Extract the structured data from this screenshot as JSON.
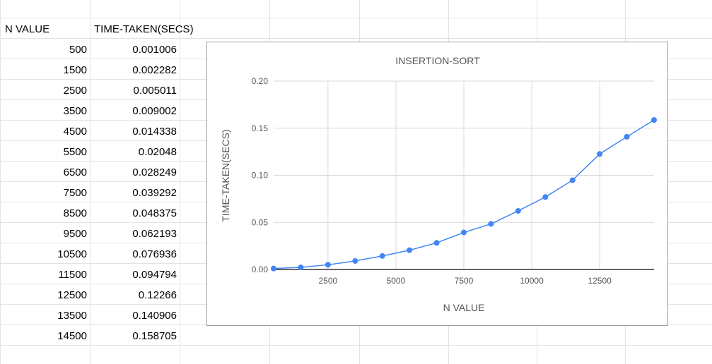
{
  "sheet": {
    "headers": {
      "col_a": "N VALUE",
      "col_b": "TIME-TAKEN(SECS)"
    },
    "rows": [
      {
        "n": "500",
        "time": "0.001006"
      },
      {
        "n": "1500",
        "time": "0.002282"
      },
      {
        "n": "2500",
        "time": "0.005011"
      },
      {
        "n": "3500",
        "time": "0.009002"
      },
      {
        "n": "4500",
        "time": "0.014338"
      },
      {
        "n": "5500",
        "time": "0.02048"
      },
      {
        "n": "6500",
        "time": "0.028249"
      },
      {
        "n": "7500",
        "time": "0.039292"
      },
      {
        "n": "8500",
        "time": "0.048375"
      },
      {
        "n": "9500",
        "time": "0.062193"
      },
      {
        "n": "10500",
        "time": "0.076936"
      },
      {
        "n": "11500",
        "time": "0.094794"
      },
      {
        "n": "12500",
        "time": "0.12266"
      },
      {
        "n": "13500",
        "time": "0.140906"
      },
      {
        "n": "14500",
        "time": "0.158705"
      }
    ]
  },
  "chart_data": {
    "type": "line",
    "title": "INSERTION-SORT",
    "xlabel": "N VALUE",
    "ylabel": "TIME-TAKEN(SECS)",
    "x": [
      500,
      1500,
      2500,
      3500,
      4500,
      5500,
      6500,
      7500,
      8500,
      9500,
      10500,
      11500,
      12500,
      13500,
      14500
    ],
    "series": [
      {
        "values": [
          0.001006,
          0.002282,
          0.005011,
          0.009002,
          0.014338,
          0.02048,
          0.028249,
          0.039292,
          0.048375,
          0.062193,
          0.076936,
          0.094794,
          0.12266,
          0.140906,
          0.158705
        ],
        "color": "#4285f4"
      }
    ],
    "xlim": [
      500,
      14500
    ],
    "ylim": [
      0,
      0.2
    ],
    "xticks": [
      2500,
      5000,
      7500,
      10000,
      12500
    ],
    "xtick_labels": [
      "2500",
      "5000",
      "7500",
      "10000",
      "12500"
    ],
    "yticks": [
      0,
      0.05,
      0.1,
      0.15,
      0.2
    ],
    "ytick_labels": [
      "0.00",
      "0.05",
      "0.10",
      "0.15",
      "0.20"
    ],
    "grid": true,
    "legend": "none"
  }
}
